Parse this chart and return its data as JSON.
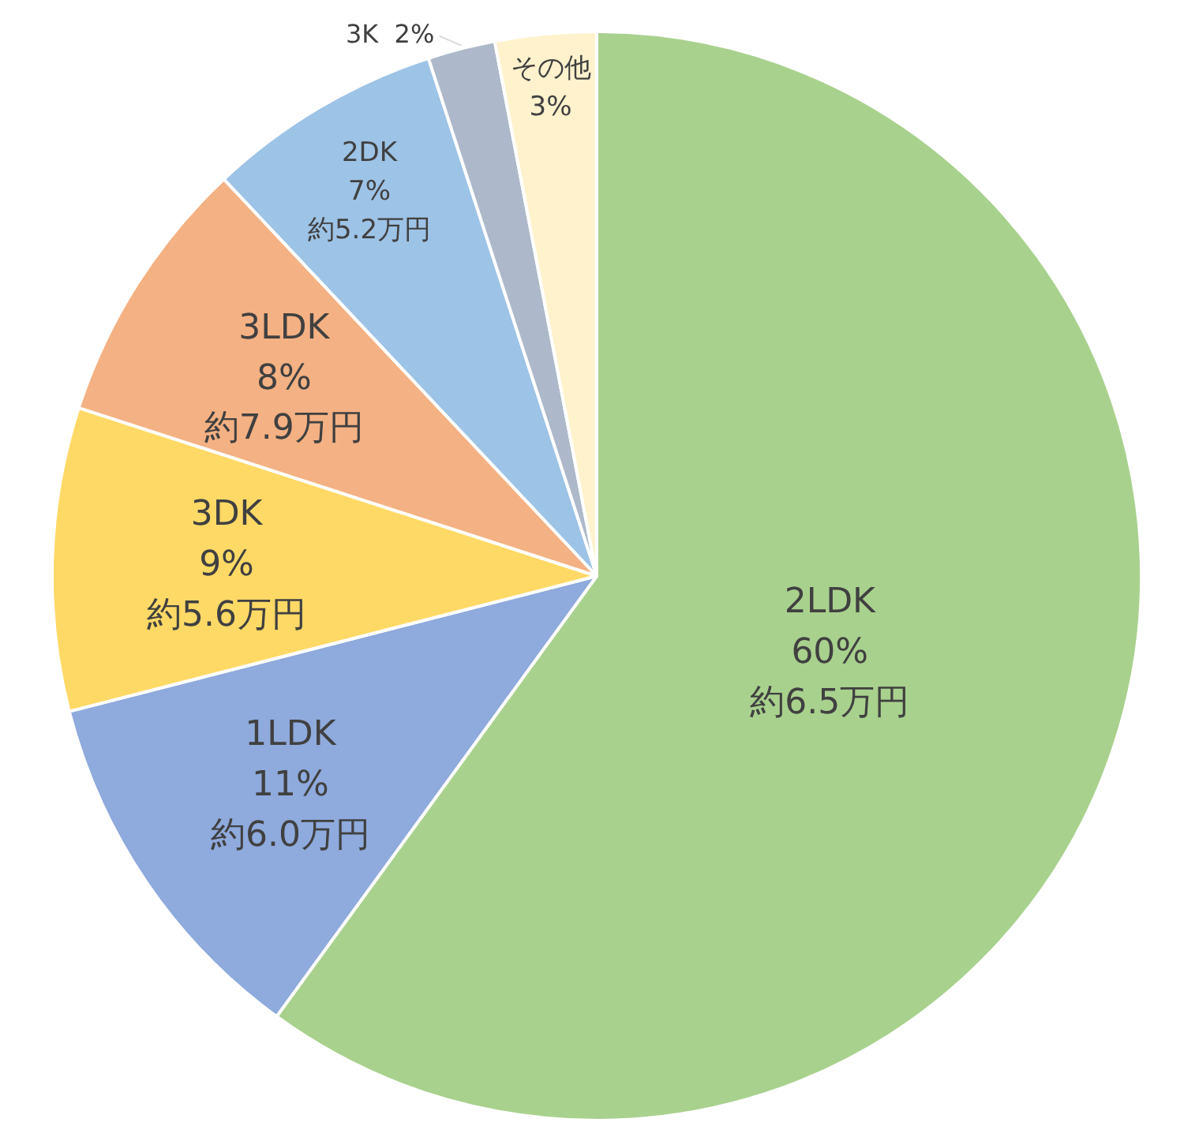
{
  "chart_data": {
    "type": "pie",
    "categories": [
      "2LDK",
      "1LDK",
      "3DK",
      "3LDK",
      "2DK",
      "3K",
      "その他"
    ],
    "values": [
      60,
      11,
      9,
      8,
      7,
      2,
      3
    ],
    "value_labels": [
      "60%",
      "11%",
      "9%",
      "8%",
      "7%",
      "2%",
      "3%"
    ],
    "colors": [
      "#a9d18e",
      "#8faadc",
      "#ffd966",
      "#f4b183",
      "#9dc3e6",
      "#adb9ca",
      "#fff2cc"
    ],
    "annotations": [
      {
        "text": "約6.5万円",
        "x": "2LDK"
      },
      {
        "text": "約6.0万円",
        "x": "1LDK"
      },
      {
        "text": "約5.6万円",
        "x": "3DK"
      },
      {
        "text": "約7.9万円",
        "x": "3LDK"
      },
      {
        "text": "約5.2万円",
        "x": "2DK"
      }
    ],
    "legend": false
  }
}
